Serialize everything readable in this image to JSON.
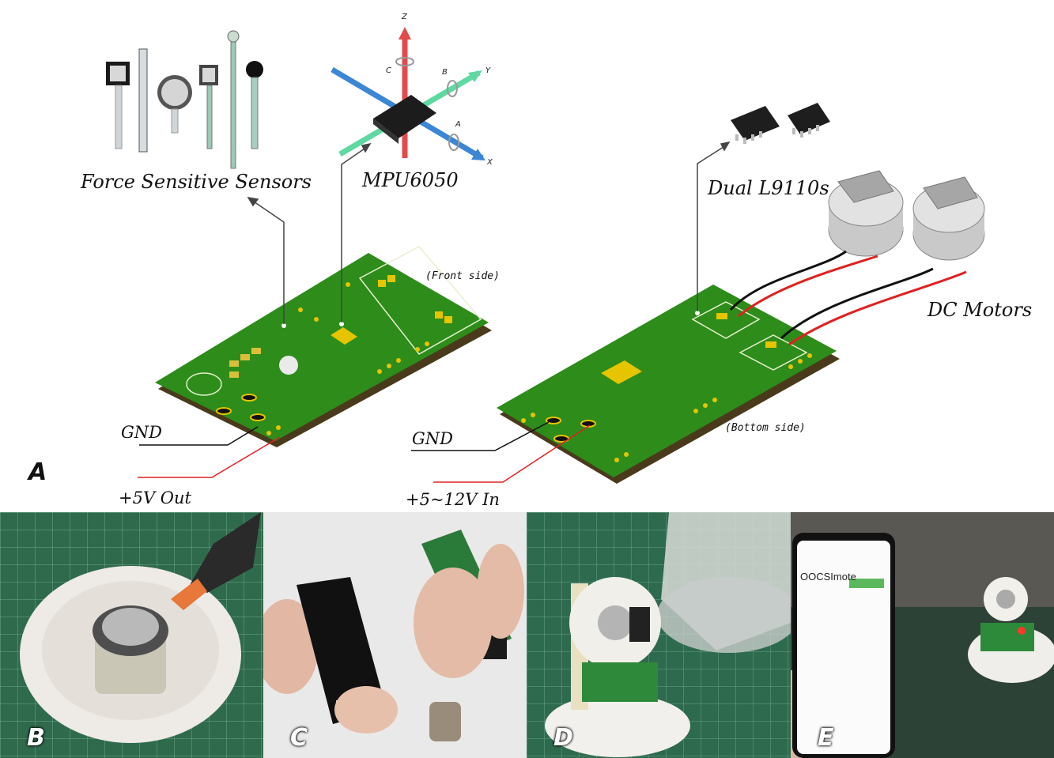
{
  "labels": {
    "fsr": "Force Sensitive Sensors",
    "mpu": "MPU6050",
    "driver": "Dual L9110s",
    "motors": "DC Motors",
    "front_side": "(Front side)",
    "bottom_side": "(Bottom side)",
    "gnd_left": "GND",
    "gnd_right": "GND",
    "vout": "+5V Out",
    "vin": "+5~12V In"
  },
  "axes": {
    "z": "Z",
    "y": "Y",
    "x": "X",
    "a": "A",
    "b": "B",
    "c": "C"
  },
  "panels": {
    "a": "A",
    "b": "B",
    "c": "C",
    "d": "D",
    "e": "E"
  },
  "phone": {
    "app_title": "OOCSImote"
  },
  "colors": {
    "pcb_green": "#2d8c1a",
    "pcb_edge": "#4a3a1c",
    "wire_red": "#e02020",
    "wire_black": "#111111"
  }
}
